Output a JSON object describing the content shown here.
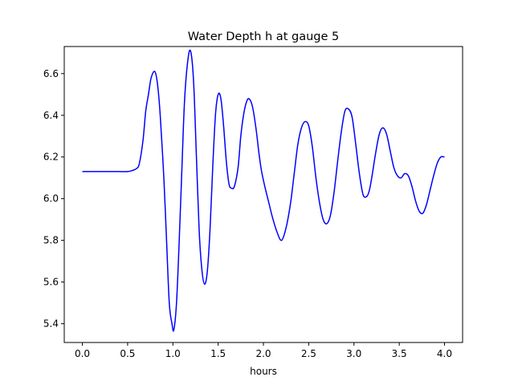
{
  "chart_data": {
    "type": "line",
    "title": "Water Depth h at gauge 5",
    "xlabel": "hours",
    "ylabel": "",
    "xlim": [
      -0.2,
      4.2
    ],
    "ylim": [
      5.31,
      6.73
    ],
    "xticks": [
      "0.0",
      "0.5",
      "1.0",
      "1.5",
      "2.0",
      "2.5",
      "3.0",
      "3.5",
      "4.0"
    ],
    "yticks": [
      "5.4",
      "5.6",
      "5.8",
      "6.0",
      "6.2",
      "6.4",
      "6.6"
    ],
    "grid": false,
    "color": "#0000ff",
    "series": [
      {
        "name": "",
        "x": [
          0.0,
          0.2,
          0.4,
          0.5,
          0.55,
          0.6,
          0.63,
          0.67,
          0.7,
          0.73,
          0.76,
          0.8,
          0.83,
          0.86,
          0.9,
          0.93,
          0.96,
          0.99,
          1.01,
          1.04,
          1.07,
          1.1,
          1.13,
          1.17,
          1.2,
          1.23,
          1.26,
          1.29,
          1.32,
          1.35,
          1.38,
          1.41,
          1.44,
          1.47,
          1.5,
          1.53,
          1.56,
          1.59,
          1.62,
          1.65,
          1.68,
          1.72,
          1.75,
          1.78,
          1.81,
          1.84,
          1.88,
          1.92,
          1.95,
          1.98,
          2.02,
          2.06,
          2.1,
          2.15,
          2.2,
          2.25,
          2.3,
          2.34,
          2.38,
          2.42,
          2.46,
          2.5,
          2.54,
          2.58,
          2.62,
          2.66,
          2.7,
          2.74,
          2.78,
          2.82,
          2.86,
          2.9,
          2.94,
          2.98,
          3.02,
          3.06,
          3.1,
          3.14,
          3.17,
          3.2,
          3.24,
          3.28,
          3.32,
          3.36,
          3.4,
          3.44,
          3.48,
          3.52,
          3.56,
          3.6,
          3.64,
          3.68,
          3.72,
          3.76,
          3.8,
          3.84,
          3.88,
          3.92,
          3.96,
          4.0
        ],
        "y": [
          6.13,
          6.13,
          6.13,
          6.13,
          6.135,
          6.145,
          6.17,
          6.28,
          6.42,
          6.5,
          6.58,
          6.61,
          6.55,
          6.4,
          6.1,
          5.8,
          5.5,
          5.4,
          5.37,
          5.5,
          5.8,
          6.15,
          6.48,
          6.68,
          6.7,
          6.55,
          6.2,
          5.85,
          5.66,
          5.59,
          5.65,
          5.85,
          6.15,
          6.4,
          6.5,
          6.48,
          6.35,
          6.18,
          6.07,
          6.05,
          6.06,
          6.15,
          6.3,
          6.4,
          6.46,
          6.48,
          6.44,
          6.33,
          6.22,
          6.13,
          6.05,
          5.98,
          5.91,
          5.84,
          5.8,
          5.86,
          5.98,
          6.12,
          6.26,
          6.34,
          6.37,
          6.35,
          6.25,
          6.1,
          5.98,
          5.9,
          5.88,
          5.92,
          6.03,
          6.18,
          6.32,
          6.42,
          6.43,
          6.39,
          6.26,
          6.12,
          6.02,
          6.01,
          6.04,
          6.11,
          6.22,
          6.31,
          6.34,
          6.31,
          6.23,
          6.15,
          6.11,
          6.1,
          6.12,
          6.11,
          6.06,
          5.99,
          5.94,
          5.93,
          5.97,
          6.04,
          6.11,
          6.17,
          6.2,
          6.2
        ]
      }
    ]
  }
}
